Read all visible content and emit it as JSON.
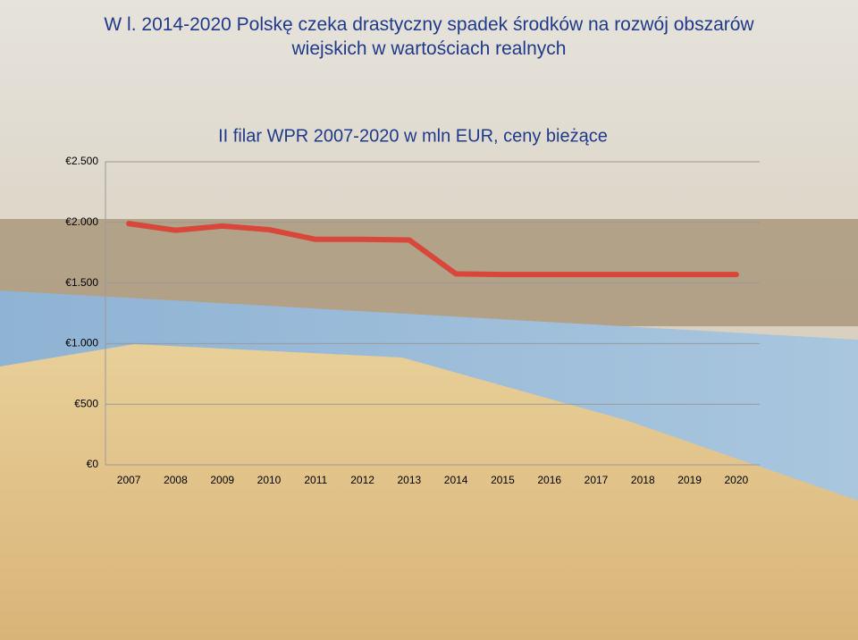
{
  "chart_data": {
    "type": "line",
    "heading": "W l. 2014-2020 Polskę czeka drastyczny spadek środków na rozwój obszarów wiejskich w wartościach realnych",
    "title": "II filar WPR 2007-2020 w mln EUR, ceny bieżące",
    "categories": [
      "2007",
      "2008",
      "2009",
      "2010",
      "2011",
      "2012",
      "2013",
      "2014",
      "2015",
      "2016",
      "2017",
      "2018",
      "2019",
      "2020"
    ],
    "values": [
      1990,
      1935,
      1970,
      1940,
      1860,
      1860,
      1855,
      1575,
      1570,
      1570,
      1570,
      1570,
      1570,
      1570
    ],
    "color": "#d9463a",
    "ylim": [
      0,
      2500
    ],
    "yticks": [
      {
        "value": 0,
        "label": "€0"
      },
      {
        "value": 500,
        "label": "€500"
      },
      {
        "value": 1000,
        "label": "€1.000"
      },
      {
        "value": 1500,
        "label": "€1.500"
      },
      {
        "value": 2000,
        "label": "€2.000"
      },
      {
        "value": 2500,
        "label": "€2.500"
      }
    ],
    "grid": true
  }
}
